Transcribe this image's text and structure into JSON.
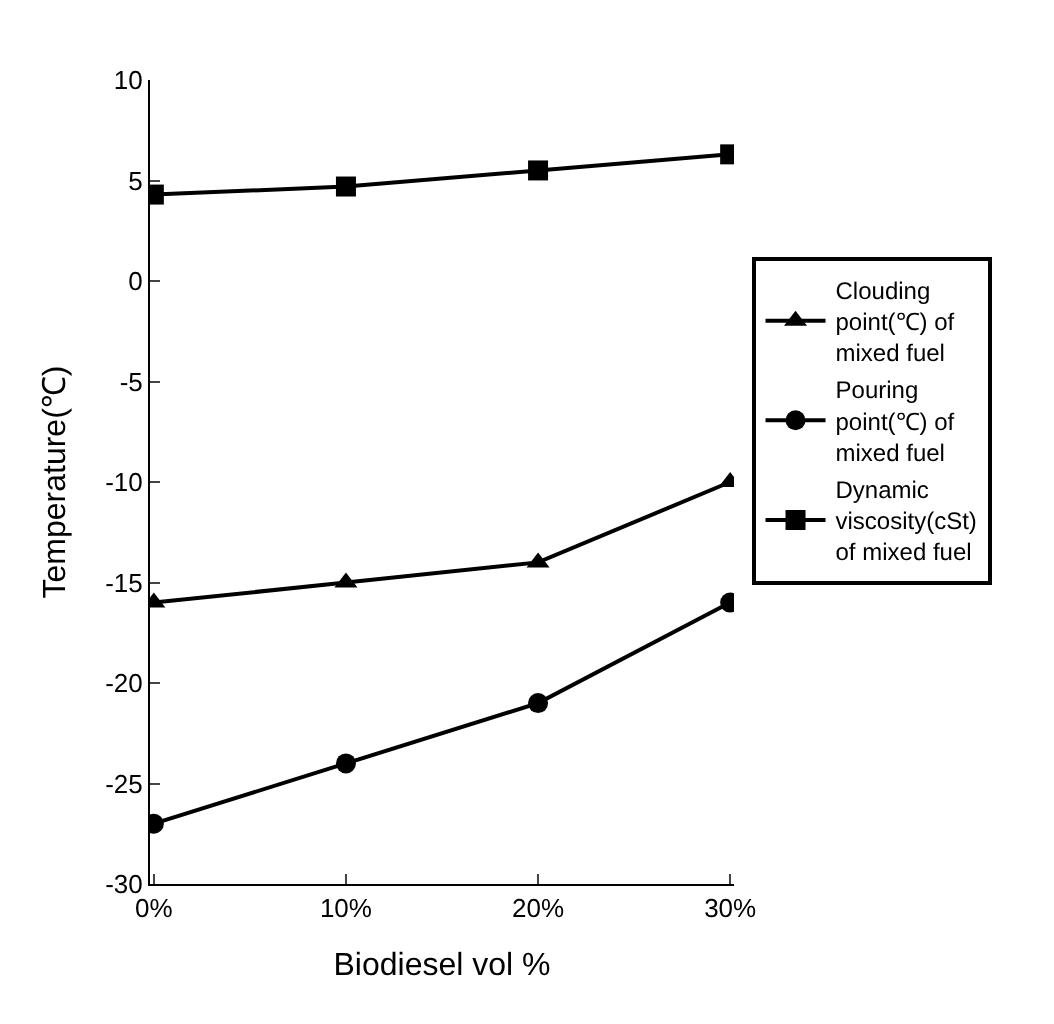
{
  "chart_data": {
    "type": "line",
    "xlabel": "Biodiesel vol %",
    "ylabel": "Temperature(℃)",
    "categories": [
      "0%",
      "10%",
      "20%",
      "30%"
    ],
    "series": [
      {
        "name": "Clouding point(℃) of mixed fuel",
        "color": "#000000",
        "marker": "triangle",
        "values": [
          -16,
          -15,
          -14,
          -10
        ]
      },
      {
        "name": "Pouring point(℃) of mixed fuel",
        "color": "#000000",
        "marker": "circle",
        "values": [
          -27,
          -24,
          -21,
          -16
        ]
      },
      {
        "name": "Dynamic viscosity(cSt) of mixed fuel",
        "color": "#000000",
        "marker": "square",
        "values": [
          4.3,
          4.7,
          5.5,
          6.3
        ]
      }
    ],
    "ylim": [
      -30,
      10
    ],
    "yticks": [
      -30,
      -25,
      -20,
      -15,
      -10,
      -5,
      0,
      5,
      10
    ],
    "legend": "right",
    "line_style": "solid"
  }
}
